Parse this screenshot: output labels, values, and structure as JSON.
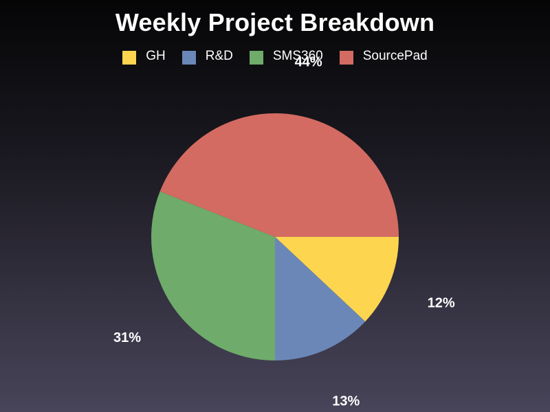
{
  "chart_data": {
    "type": "pie",
    "title": "Weekly Project Breakdown",
    "legend_position": "top",
    "start_angle_deg": 0,
    "direction": "clockwise",
    "slices": [
      {
        "label": "GH",
        "value": 12,
        "display": "12%",
        "color": "#fdd54f"
      },
      {
        "label": "R&D",
        "value": 13,
        "display": "13%",
        "color": "#6a87b7"
      },
      {
        "label": "SMS360",
        "value": 31,
        "display": "31%",
        "color": "#6fab6a"
      },
      {
        "label": "SourcePad",
        "value": 44,
        "display": "44%",
        "color": "#d36b62"
      }
    ]
  }
}
